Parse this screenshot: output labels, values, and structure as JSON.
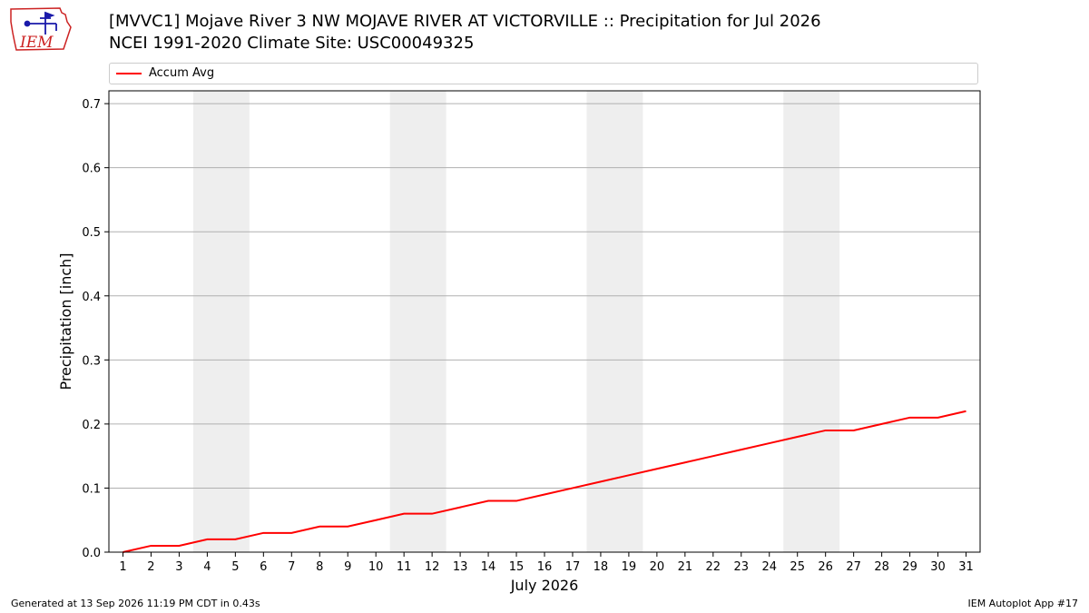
{
  "header": {
    "title_line1": "[MVVC1] Mojave River 3 NW MOJAVE RIVER AT VICTORVILLE :: Precipitation for Jul 2026",
    "title_line2": "NCEI 1991-2020 Climate Site: USC00049325"
  },
  "logo": {
    "text": "IEM",
    "icon": "iem-iowa-weather-logo",
    "color": "#cc2222"
  },
  "footer": {
    "left": "Generated at 13 Sep 2026 11:19 PM CDT in 0.43s",
    "right": "IEM Autoplot App #17"
  },
  "chart_data": {
    "type": "line",
    "xlabel": "July 2026",
    "ylabel": "Precipitation [inch]",
    "xlim": [
      0.5,
      31.5
    ],
    "ylim": [
      0,
      0.72
    ],
    "x_ticks": [
      1,
      2,
      3,
      4,
      5,
      6,
      7,
      8,
      9,
      10,
      11,
      12,
      13,
      14,
      15,
      16,
      17,
      18,
      19,
      20,
      21,
      22,
      23,
      24,
      25,
      26,
      27,
      28,
      29,
      30,
      31
    ],
    "y_ticks": [
      0.0,
      0.1,
      0.2,
      0.3,
      0.4,
      0.5,
      0.6,
      0.7
    ],
    "y_tick_labels": [
      "0.0",
      "0.1",
      "0.2",
      "0.3",
      "0.4",
      "0.5",
      "0.6",
      "0.7"
    ],
    "grid": "y",
    "legend_position": "top",
    "weekend_bands": [
      [
        3.5,
        5.5
      ],
      [
        10.5,
        12.5
      ],
      [
        17.5,
        19.5
      ],
      [
        24.5,
        26.5
      ]
    ],
    "weekend_band_color": "#eeeeee",
    "series": [
      {
        "name": "Accum Avg",
        "color": "#ff0000",
        "x": [
          1,
          2,
          3,
          4,
          5,
          6,
          7,
          8,
          9,
          10,
          11,
          12,
          13,
          14,
          15,
          16,
          17,
          18,
          19,
          20,
          21,
          22,
          23,
          24,
          25,
          26,
          27,
          28,
          29,
          30,
          31
        ],
        "values": [
          0.0,
          0.01,
          0.01,
          0.02,
          0.02,
          0.03,
          0.03,
          0.04,
          0.04,
          0.05,
          0.06,
          0.06,
          0.07,
          0.08,
          0.08,
          0.09,
          0.1,
          0.11,
          0.12,
          0.13,
          0.14,
          0.15,
          0.16,
          0.17,
          0.18,
          0.19,
          0.19,
          0.2,
          0.21,
          0.21,
          0.22
        ]
      }
    ]
  }
}
